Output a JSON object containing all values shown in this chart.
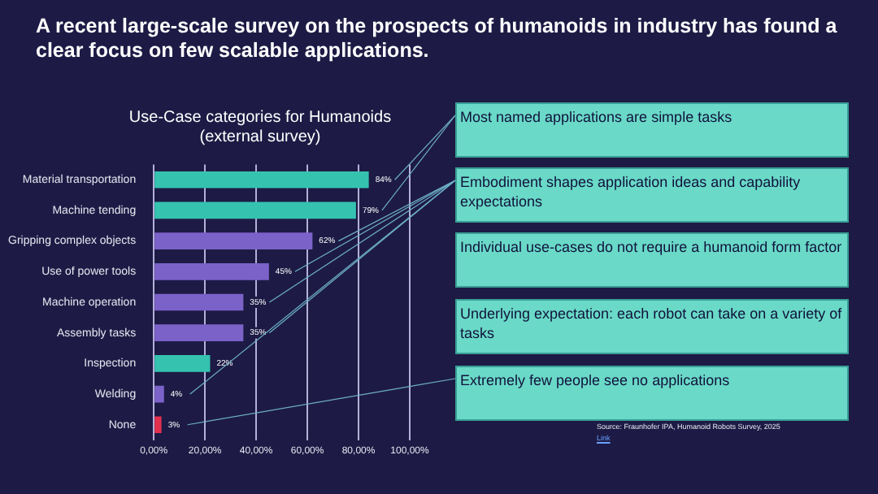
{
  "chart_data": {
    "type": "bar",
    "orientation": "horizontal",
    "title": "A recent large-scale survey on the prospects of humanoids in industry has found a clear focus on few scalable applications.",
    "subtitle": "Use-Case categories for Humanoids (external survey)",
    "categories": [
      "Material transportation",
      "Machine tending",
      "Gripping complex objects",
      "Use of power tools",
      "Machine operation",
      "Assembly tasks",
      "Inspection",
      "Welding",
      "None"
    ],
    "values": [
      84,
      79,
      62,
      45,
      35,
      35,
      22,
      4,
      3
    ],
    "colors": [
      "#35c3b0",
      "#35c3b0",
      "#7b62c9",
      "#7b62c9",
      "#7b62c9",
      "#7b62c9",
      "#35c3b0",
      "#7b62c9",
      "#e2304e"
    ],
    "value_labels": [
      "84%",
      "79%",
      "62%",
      "45%",
      "35%",
      "35%",
      "22%",
      "4%",
      "3%"
    ],
    "xlim": [
      0,
      100
    ],
    "xticks": [
      {
        "value": 0,
        "label": "0,00%"
      },
      {
        "value": 20,
        "label": "20,00%"
      },
      {
        "value": 40,
        "label": "40,00%"
      },
      {
        "value": 60,
        "label": "60,00%"
      },
      {
        "value": 80,
        "label": "80,00%"
      },
      {
        "value": 100,
        "label": "100,00%"
      }
    ],
    "grid": "x",
    "annotations": [
      "Most named applications are simple tasks",
      "Embodiment shapes application ideas and capability expectations",
      "Individual use-cases do not require a humanoid form factor",
      "Underlying expectation: each robot can take on a variety of tasks",
      "Extremely few people see no applications",
      "Source: Fraunhofer IPA, Humanoid Robots Survey, 2025",
      "Link"
    ]
  }
}
